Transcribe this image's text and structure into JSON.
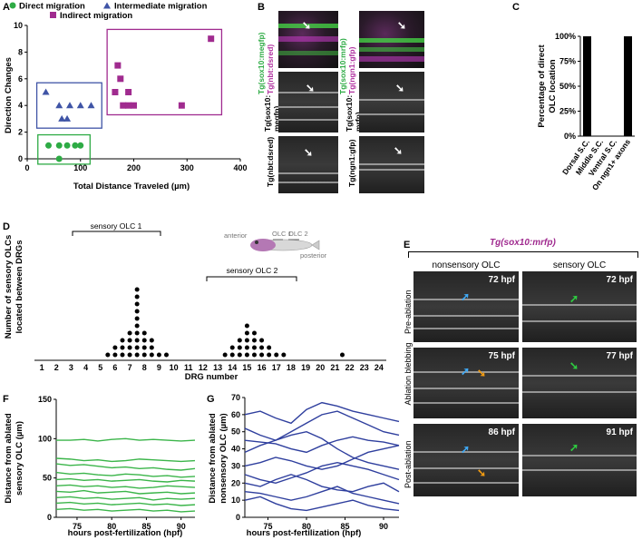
{
  "panels": {
    "A": "A",
    "B": "B",
    "C": "C",
    "D": "D",
    "E": "E",
    "F": "F",
    "G": "G"
  },
  "panelA": {
    "legend": [
      "Direct migration",
      "Intermediate migration",
      "Indirect migration"
    ],
    "colors": {
      "direct": "#2eab45",
      "intermediate": "#3f54a6",
      "indirect": "#a02b8f"
    },
    "xlabel": "Total Distance Traveled (µm)",
    "ylabel": "Direction Changes",
    "xticks": [
      "0",
      "100",
      "200",
      "300",
      "400"
    ],
    "yticks": [
      "0",
      "2",
      "4",
      "6",
      "8",
      "10"
    ]
  },
  "panelB": {
    "col1_top": [
      "Tg(sox10:megfp)",
      "Tg(nbt:dsred)"
    ],
    "col1_mid": [
      "Tg(sox10:",
      "megfp)"
    ],
    "col1_bot": "Tg(nbt:dsred)",
    "col2_top": [
      "Tg(sox10:mrfp)",
      "Tg(ngn1:gfp)"
    ],
    "col2_mid": [
      "Tg(sox10:",
      "mrfp)"
    ],
    "col2_bot": "Tg(ngn1:gfp)"
  },
  "panelC": {
    "ylabel": [
      "Percentage of direct",
      "OLC location"
    ],
    "yticks": [
      "0%",
      "25%",
      "50%",
      "75%",
      "100%"
    ],
    "categories": [
      "Dorsal S.C.",
      "Middle S.C.",
      "Ventral S.C.",
      "On ngn1+ axons"
    ]
  },
  "panelD": {
    "ylabel": [
      "Number of sensory OLCs",
      "located between DRGs"
    ],
    "xlabel": "DRG number",
    "bracket1": "sensory OLC 1",
    "bracket2": "sensory OLC 2",
    "fish_labels": [
      "anterior",
      "OLC 1",
      "OLC 2",
      "posterior"
    ],
    "xticks": [
      "1",
      "2",
      "3",
      "4",
      "5",
      "6",
      "7",
      "8",
      "9",
      "10",
      "11",
      "12",
      "13",
      "14",
      "15",
      "16",
      "17",
      "18",
      "19",
      "20",
      "21",
      "22",
      "23",
      "24"
    ]
  },
  "panelE": {
    "title": "Tg(sox10:mrfp)",
    "col_headers": [
      "nonsensory OLC",
      "sensory OLC"
    ],
    "row_labels": [
      "Pre-ablation",
      "Ablation blebbing",
      "Post-ablation"
    ],
    "times": [
      [
        "72 hpf",
        "72 hpf"
      ],
      [
        "75 hpf",
        "77 hpf"
      ],
      [
        "86 hpf",
        "91 hpf"
      ]
    ]
  },
  "panelF": {
    "ylabel": [
      "Distance from ablated",
      "sensory OLC (µm)"
    ],
    "xlabel": "hours post-fertilization (hpf)",
    "xticks": [
      "75",
      "80",
      "85",
      "90"
    ],
    "yticks": [
      "0",
      "50",
      "100",
      "150"
    ],
    "color": "#3bb54a"
  },
  "panelG": {
    "ylabel": [
      "Distance from ablated",
      "nonsensory OLC (µm)"
    ],
    "xlabel": "hours post-fertilization (hpf)",
    "xticks": [
      "75",
      "80",
      "85",
      "90"
    ],
    "yticks": [
      "0",
      "10",
      "20",
      "30",
      "40",
      "50",
      "60",
      "70"
    ],
    "color": "#2f3f9e"
  },
  "chart_data": [
    {
      "type": "scatter",
      "panel": "A",
      "xlabel": "Total Distance Traveled (µm)",
      "ylabel": "Direction Changes",
      "xlim": [
        0,
        400
      ],
      "ylim": [
        0,
        10
      ],
      "series": [
        {
          "name": "Direct migration",
          "points": [
            [
              40,
              1
            ],
            [
              60,
              1
            ],
            [
              75,
              1
            ],
            [
              90,
              1
            ],
            [
              100,
              1
            ],
            [
              60,
              0
            ]
          ]
        },
        {
          "name": "Intermediate migration",
          "points": [
            [
              35,
              5
            ],
            [
              60,
              4
            ],
            [
              80,
              4
            ],
            [
              100,
              4
            ],
            [
              120,
              4
            ],
            [
              65,
              3
            ],
            [
              75,
              3
            ]
          ]
        },
        {
          "name": "Indirect migration",
          "points": [
            [
              170,
              7
            ],
            [
              175,
              6
            ],
            [
              165,
              5
            ],
            [
              180,
              4
            ],
            [
              190,
              4
            ],
            [
              200,
              4
            ],
            [
              190,
              5
            ],
            [
              290,
              4
            ],
            [
              345,
              9
            ]
          ]
        }
      ]
    },
    {
      "type": "bar",
      "panel": "C",
      "categories": [
        "Dorsal S.C.",
        "Middle S.C.",
        "Ventral S.C.",
        "On ngn1+ axons"
      ],
      "values": [
        100,
        0,
        0,
        100
      ],
      "ylim": [
        0,
        100
      ]
    },
    {
      "type": "scatter",
      "panel": "D",
      "xlabel": "DRG number",
      "categories": [
        5.5,
        6,
        6.5,
        7,
        7.5,
        8,
        8.5,
        9,
        9.5,
        10,
        13.5,
        14,
        14.5,
        15,
        15.5,
        16,
        16.5,
        17,
        17.5,
        18,
        21.5
      ],
      "values": [
        1,
        2,
        3,
        4,
        10,
        4,
        3,
        1,
        1,
        0,
        1,
        2,
        3,
        5,
        4,
        3,
        2,
        1,
        1,
        0,
        1
      ]
    },
    {
      "type": "line",
      "panel": "F",
      "xlabel": "hours post-fertilization (hpf)",
      "xlim": [
        72,
        92
      ],
      "ylim": [
        0,
        150
      ],
      "series": [
        {
          "values": [
            98,
            98,
            99,
            97,
            99,
            100,
            98,
            99,
            98,
            97,
            98
          ]
        },
        {
          "values": [
            75,
            74,
            72,
            73,
            71,
            72,
            74,
            73,
            72,
            71,
            72
          ]
        },
        {
          "values": [
            68,
            66,
            67,
            65,
            63,
            64,
            62,
            63,
            61,
            60,
            62
          ]
        },
        {
          "values": [
            57,
            55,
            56,
            54,
            53,
            55,
            54,
            52,
            53,
            51,
            52
          ]
        },
        {
          "values": [
            48,
            49,
            47,
            48,
            46,
            47,
            48,
            46,
            45,
            47,
            46
          ]
        },
        {
          "values": [
            40,
            41,
            39,
            40,
            38,
            39,
            37,
            38,
            40,
            39,
            38
          ]
        },
        {
          "values": [
            33,
            32,
            34,
            31,
            32,
            33,
            30,
            31,
            32,
            30,
            31
          ]
        },
        {
          "values": [
            25,
            26,
            24,
            25,
            23,
            24,
            25,
            22,
            24,
            23,
            24
          ]
        },
        {
          "values": [
            18,
            19,
            17,
            18,
            16,
            17,
            18,
            16,
            17,
            15,
            16
          ]
        },
        {
          "values": [
            10,
            11,
            9,
            10,
            8,
            9,
            10,
            8,
            9,
            7,
            8
          ]
        }
      ]
    },
    {
      "type": "line",
      "panel": "G",
      "xlabel": "hours post-fertilization (hpf)",
      "xlim": [
        72,
        92
      ],
      "ylim": [
        0,
        70
      ],
      "series": [
        {
          "values": [
            60,
            62,
            58,
            55,
            63,
            67,
            65,
            62,
            60,
            58,
            56
          ]
        },
        {
          "values": [
            52,
            48,
            45,
            50,
            55,
            60,
            62,
            58,
            54,
            50,
            48
          ]
        },
        {
          "values": [
            45,
            44,
            43,
            40,
            38,
            42,
            45,
            47,
            45,
            44,
            42
          ]
        },
        {
          "values": [
            38,
            42,
            45,
            48,
            50,
            46,
            40,
            35,
            32,
            30,
            28
          ]
        },
        {
          "values": [
            30,
            32,
            35,
            33,
            30,
            28,
            30,
            34,
            38,
            40,
            42
          ]
        },
        {
          "values": [
            25,
            22,
            20,
            23,
            26,
            30,
            32,
            30,
            28,
            25,
            22
          ]
        },
        {
          "values": [
            20,
            18,
            22,
            25,
            22,
            18,
            16,
            15,
            18,
            20,
            15
          ]
        },
        {
          "values": [
            15,
            14,
            12,
            10,
            12,
            15,
            18,
            14,
            12,
            10,
            8
          ]
        },
        {
          "values": [
            10,
            12,
            8,
            5,
            4,
            6,
            8,
            10,
            7,
            5,
            4
          ]
        }
      ]
    }
  ]
}
